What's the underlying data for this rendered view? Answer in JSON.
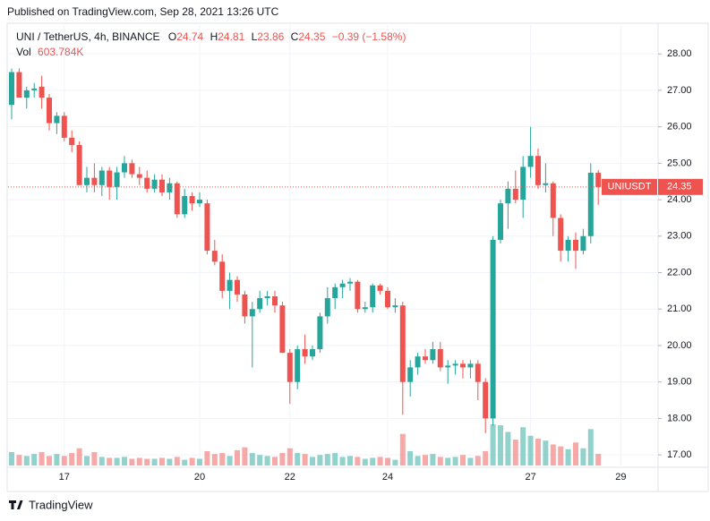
{
  "published": "Published on TradingView.com, Sep 28, 2021 13:26 UTC",
  "footer": "TradingView",
  "chart_data": {
    "type": "candlestick",
    "symbol": "UNI / TetherUS, 4h, BINANCE",
    "ohlc_letters": [
      "O",
      "H",
      "L",
      "C"
    ],
    "change": "−0.39 (−1.58%)",
    "volume_title": "Vol",
    "ticker": "UNIUSDT",
    "up_color": "#26a69a",
    "down_color": "#ef5350",
    "grid": true,
    "categories": [
      null,
      null,
      null,
      null,
      null,
      null,
      null,
      "17",
      null,
      null,
      null,
      null,
      null,
      null,
      null,
      null,
      null,
      null,
      null,
      null,
      null,
      null,
      null,
      null,
      null,
      "20",
      null,
      null,
      null,
      null,
      null,
      null,
      null,
      null,
      null,
      null,
      null,
      "22",
      null,
      null,
      null,
      null,
      null,
      null,
      null,
      null,
      null,
      null,
      null,
      null,
      "24",
      null,
      null,
      null,
      null,
      null,
      null,
      null,
      null,
      null,
      null,
      null,
      null,
      null,
      null,
      null,
      null,
      null,
      null,
      "27",
      null,
      null,
      null,
      null,
      null,
      null,
      null,
      null,
      null,
      null,
      null,
      "29"
    ],
    "open": [
      26.6,
      27.5,
      26.8,
      27.0,
      27.1,
      26.8,
      26.1,
      26.3,
      25.7,
      25.5,
      24.4,
      24.6,
      24.4,
      24.8,
      24.35,
      24.75,
      25.0,
      24.7,
      24.6,
      24.3,
      24.55,
      24.2,
      24.45,
      23.6,
      24.1,
      23.9,
      23.9,
      22.6,
      22.3,
      21.5,
      21.8,
      21.4,
      20.8,
      21.0,
      21.3,
      21.35,
      21.1,
      19.8,
      19.0,
      19.9,
      19.7,
      19.9,
      20.8,
      21.3,
      21.6,
      21.7,
      21.75,
      21.0,
      21.05,
      21.65,
      21.5,
      21.05,
      21.1,
      19.0,
      19.4,
      19.7,
      19.6,
      19.9,
      19.4,
      19.45,
      19.5,
      19.4,
      19.5,
      19.0,
      18.0,
      22.9,
      23.9,
      24.3,
      24.0,
      24.9,
      25.2,
      24.4,
      24.45,
      23.5,
      22.6,
      22.9,
      22.6,
      23.0,
      24.74,
      null,
      null,
      null
    ],
    "high": [
      27.6,
      27.6,
      27.1,
      27.2,
      27.4,
      26.9,
      26.4,
      26.4,
      25.9,
      25.6,
      24.9,
      25.0,
      24.9,
      24.9,
      24.9,
      25.2,
      25.1,
      24.9,
      24.8,
      24.7,
      24.7,
      24.6,
      24.5,
      24.3,
      24.2,
      24.2,
      24.0,
      22.9,
      22.5,
      22.0,
      21.9,
      21.5,
      21.2,
      21.5,
      21.5,
      21.5,
      21.2,
      19.9,
      20.0,
      20.3,
      20.0,
      20.9,
      21.6,
      21.7,
      21.8,
      21.85,
      21.8,
      21.2,
      21.7,
      21.7,
      21.6,
      21.3,
      21.2,
      19.6,
      19.8,
      19.9,
      20.1,
      20.1,
      19.6,
      19.6,
      19.6,
      19.6,
      19.6,
      19.1,
      23.0,
      24.0,
      24.5,
      24.8,
      25.2,
      26.0,
      25.4,
      25.0,
      24.5,
      23.6,
      23.0,
      23.1,
      23.2,
      25.0,
      24.81,
      null,
      null,
      null
    ],
    "low": [
      26.2,
      26.8,
      26.5,
      26.8,
      26.5,
      25.9,
      25.8,
      25.6,
      25.3,
      24.4,
      24.2,
      24.2,
      24.1,
      24.0,
      24.0,
      24.6,
      24.6,
      24.4,
      24.2,
      24.2,
      24.1,
      24.0,
      23.5,
      23.5,
      23.7,
      23.8,
      22.5,
      22.2,
      21.3,
      21.0,
      21.2,
      20.6,
      19.4,
      20.9,
      21.1,
      20.9,
      19.8,
      18.4,
      18.8,
      19.5,
      19.6,
      19.8,
      20.6,
      21.0,
      21.3,
      21.5,
      20.9,
      20.9,
      20.9,
      21.4,
      21.0,
      20.9,
      18.1,
      18.6,
      19.2,
      19.5,
      19.5,
      19.3,
      18.95,
      19.2,
      19.1,
      19.1,
      18.5,
      17.6,
      17.8,
      22.8,
      23.2,
      23.9,
      23.5,
      24.6,
      24.3,
      24.2,
      23.0,
      22.3,
      22.3,
      22.1,
      22.5,
      22.8,
      23.86,
      null,
      null,
      null
    ],
    "close": [
      27.5,
      26.8,
      27.0,
      27.05,
      26.8,
      26.1,
      26.3,
      25.7,
      25.5,
      24.4,
      24.6,
      24.4,
      24.8,
      24.35,
      24.75,
      25.0,
      24.7,
      24.6,
      24.3,
      24.55,
      24.2,
      24.45,
      23.6,
      24.1,
      23.9,
      24.0,
      22.6,
      22.3,
      21.5,
      21.8,
      21.4,
      20.8,
      21.0,
      21.3,
      21.35,
      21.1,
      19.8,
      19.0,
      19.9,
      19.7,
      19.9,
      20.8,
      21.3,
      21.6,
      21.7,
      21.75,
      21.0,
      21.05,
      21.65,
      21.5,
      21.05,
      21.1,
      19.0,
      19.4,
      19.7,
      19.6,
      19.9,
      19.4,
      19.45,
      19.5,
      19.4,
      19.5,
      19.0,
      18.0,
      22.9,
      23.9,
      24.3,
      24.0,
      24.9,
      25.2,
      24.4,
      24.45,
      23.5,
      22.6,
      22.9,
      22.6,
      23.0,
      24.74,
      24.35,
      null,
      null,
      null
    ],
    "volume": {
      "values": [
        700000,
        550000,
        500000,
        600000,
        700000,
        500000,
        600000,
        500000,
        650000,
        900000,
        500000,
        700000,
        450000,
        400000,
        400000,
        450000,
        350000,
        400000,
        350000,
        350000,
        400000,
        350000,
        450000,
        300000,
        400000,
        350000,
        750000,
        600000,
        650000,
        500000,
        800000,
        950000,
        650000,
        550000,
        500000,
        450000,
        650000,
        900000,
        650000,
        600000,
        450000,
        550000,
        600000,
        650000,
        450000,
        500000,
        450000,
        350000,
        400000,
        450000,
        400000,
        300000,
        1650000,
        750000,
        500000,
        550000,
        600000,
        450000,
        400000,
        450000,
        550000,
        400000,
        500000,
        750000,
        2150000,
        2100000,
        1750000,
        1350000,
        2000000,
        1550000,
        1400000,
        1300000,
        1100000,
        1000000,
        850000,
        1200000,
        900000,
        1900000,
        603784,
        null,
        null,
        null
      ],
      "last_label": "603.784K"
    },
    "ylim": [
      16.66,
      28.79
    ],
    "yticks": [
      {
        "value": 17,
        "label": "17.00"
      },
      {
        "value": 18,
        "label": "18.00"
      },
      {
        "value": 19,
        "label": "19.00"
      },
      {
        "value": 20,
        "label": "20.00"
      },
      {
        "value": 21,
        "label": "21.00"
      },
      {
        "value": 22,
        "label": "22.00"
      },
      {
        "value": 23,
        "label": "23.00"
      },
      {
        "value": 24,
        "label": "24.00"
      },
      {
        "value": 25,
        "label": "25.00"
      },
      {
        "value": 26,
        "label": "26.00"
      },
      {
        "value": 27,
        "label": "27.00"
      },
      {
        "value": 28,
        "label": "28.00"
      }
    ]
  }
}
